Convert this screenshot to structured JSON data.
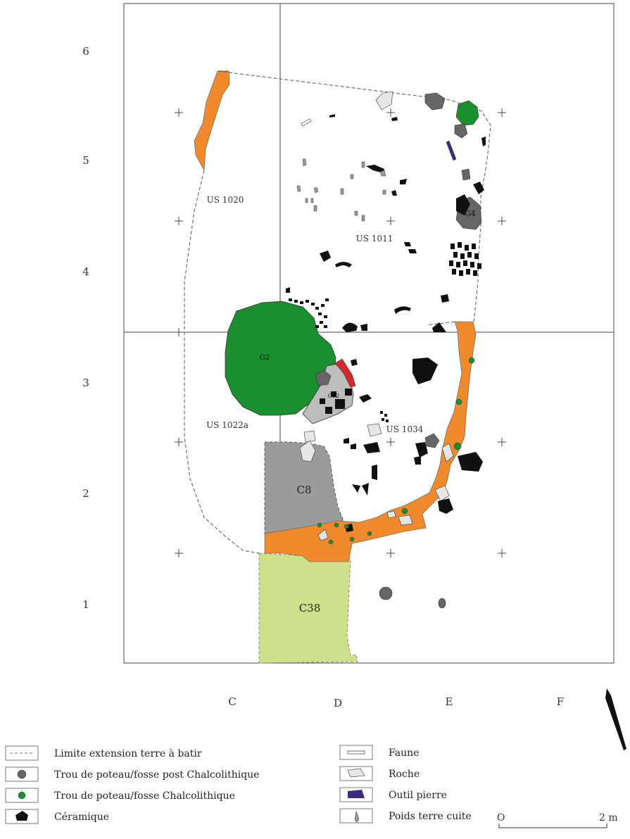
{
  "grid": {
    "rows": [
      "6",
      "5",
      "4",
      "3",
      "2",
      "1"
    ],
    "columns": [
      "C",
      "D",
      "E",
      "F"
    ]
  },
  "labels": {
    "us_1020": "US 1020",
    "us_1011": "US 1011",
    "us_1022a": "US 1022a",
    "us_1034": "US 1034",
    "g2": "G2",
    "g4": "G4",
    "c12": "C12",
    "c8": "C8",
    "c38": "C38"
  },
  "legend": {
    "left": [
      {
        "key": "limit",
        "label": "Limite extension terre à batir"
      },
      {
        "key": "post_hole_post",
        "label": "Trou de poteau/fosse post Chalcolithique"
      },
      {
        "key": "post_hole_chalco",
        "label": "Trou de poteau/fosse Chalcolithique"
      },
      {
        "key": "ceramic",
        "label": "Céramique"
      }
    ],
    "right": [
      {
        "key": "fauna",
        "label": "Faune"
      },
      {
        "key": "rock",
        "label": "Roche"
      },
      {
        "key": "stone_tool",
        "label": "Outil pierre"
      },
      {
        "key": "weight",
        "label": "Poids terre cuite"
      }
    ]
  },
  "scale": {
    "start": "O",
    "end": "2 m"
  },
  "colors": {
    "orange": "#f08a2c",
    "green": "#1a8f2f",
    "grey": "#9b9b9b",
    "dark_grey": "#666666",
    "light_green": "#cfe08a",
    "light_rock": "#e6e6e6",
    "red": "#d62828",
    "purple": "#3d2a7a",
    "black": "#111111"
  }
}
